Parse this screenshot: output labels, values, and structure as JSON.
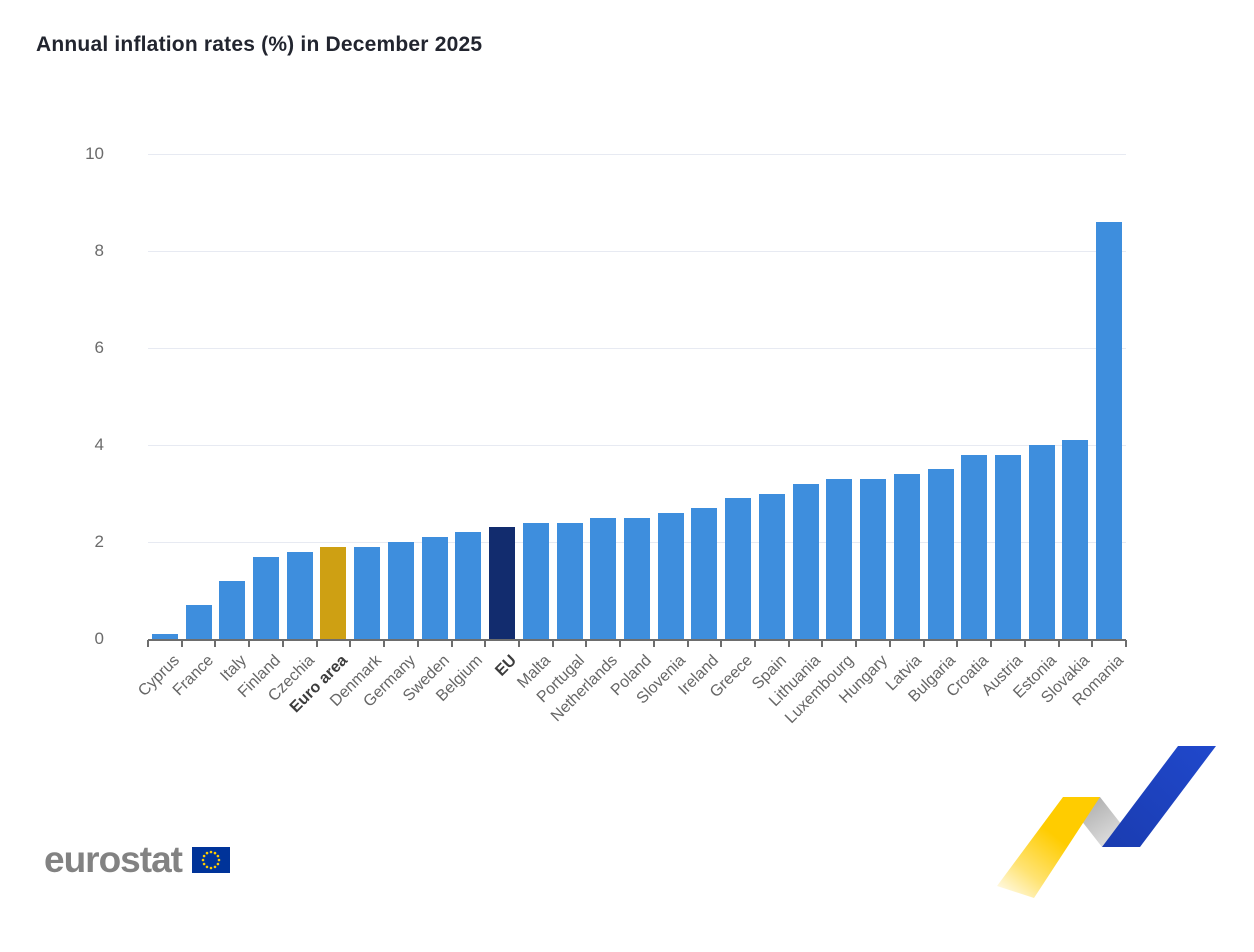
{
  "title": "Annual inflation rates (%) in December 2025",
  "logo": {
    "text": "eurostat"
  },
  "colors": {
    "bar_default": "#3E8EDD",
    "bar_euro_area": "#CEA013",
    "bar_eu": "#122C6E",
    "gridline": "#E7EAF2",
    "axis_line": "#6D6D6D",
    "axis_label": "#6B6B6B",
    "flag_blue": "#003399",
    "flag_stars": "#FFCC00",
    "ribbon_yellow": "#FFCC00",
    "ribbon_gray": "#ADADAD",
    "ribbon_blue": "#1D44C0"
  },
  "chart_data": {
    "type": "bar",
    "title": "Annual inflation rates (%) in December 2025",
    "xlabel": "",
    "ylabel": "",
    "ylim": [
      0,
      10
    ],
    "yticks": [
      0,
      2,
      4,
      6,
      8,
      10
    ],
    "grid": true,
    "legend_position": "none",
    "categories": [
      "Cyprus",
      "France",
      "Italy",
      "Finland",
      "Czechia",
      "Euro area",
      "Denmark",
      "Germany",
      "Sweden",
      "Belgium",
      "EU",
      "Malta",
      "Portugal",
      "Netherlands",
      "Poland",
      "Slovenia",
      "Ireland",
      "Greece",
      "Spain",
      "Lithuania",
      "Luxembourg",
      "Hungary",
      "Latvia",
      "Bulgaria",
      "Croatia",
      "Austria",
      "Estonia",
      "Slovakia",
      "Romania"
    ],
    "values": [
      0.1,
      0.7,
      1.2,
      1.7,
      1.8,
      1.9,
      1.9,
      2.0,
      2.1,
      2.2,
      2.3,
      2.4,
      2.4,
      2.5,
      2.5,
      2.6,
      2.7,
      2.9,
      3.0,
      3.2,
      3.3,
      3.3,
      3.4,
      3.5,
      3.8,
      3.8,
      4.0,
      4.1,
      8.6
    ],
    "highlighted_bars": [
      {
        "category": "Euro area",
        "color_key": "bar_euro_area",
        "bold_label": true
      },
      {
        "category": "EU",
        "color_key": "bar_eu",
        "bold_label": true
      }
    ],
    "default_bar_color_key": "bar_default"
  }
}
